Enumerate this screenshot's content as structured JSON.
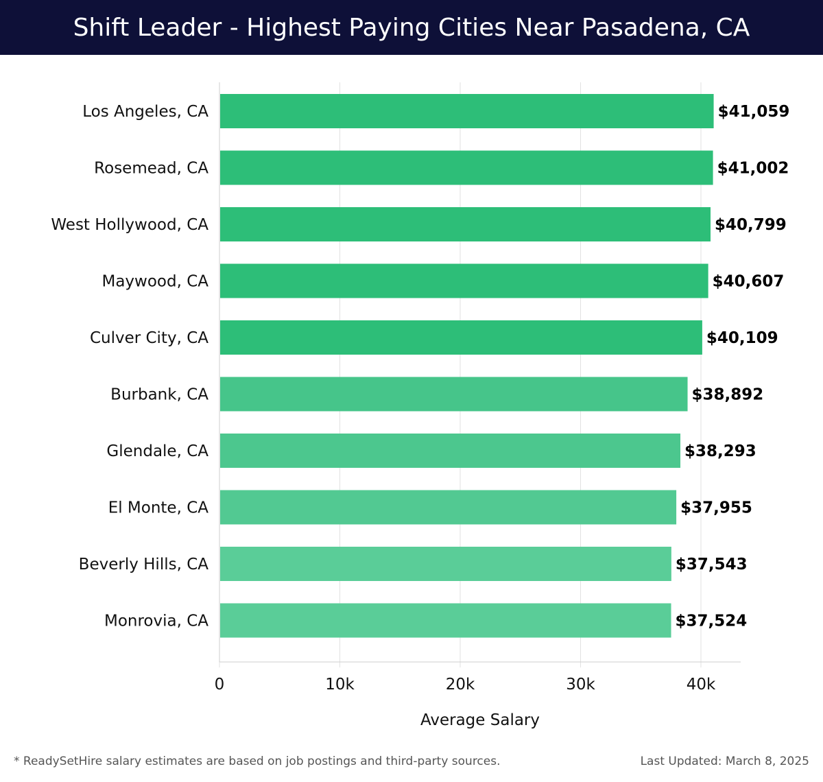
{
  "header": {
    "title": "Shift Leader - Highest Paying Cities Near Pasadena, CA"
  },
  "chart_data": {
    "type": "bar",
    "orientation": "horizontal",
    "title": "Shift Leader - Highest Paying Cities Near Pasadena, CA",
    "xlabel": "Average Salary",
    "ylabel": "",
    "xlim": [
      0,
      43000
    ],
    "grid": true,
    "categories": [
      "Los Angeles, CA",
      "Rosemead, CA",
      "West Hollywood, CA",
      "Maywood, CA",
      "Culver City, CA",
      "Burbank, CA",
      "Glendale, CA",
      "El Monte, CA",
      "Beverly Hills, CA",
      "Monrovia, CA"
    ],
    "values": [
      41059,
      41002,
      40799,
      40607,
      40109,
      38892,
      38293,
      37955,
      37543,
      37524
    ],
    "value_labels": [
      "$41,059",
      "$41,002",
      "$40,799",
      "$40,607",
      "$40,109",
      "$38,892",
      "$38,293",
      "$37,955",
      "$37,543",
      "$37,524"
    ],
    "x_ticks": [
      0,
      10000,
      20000,
      30000,
      40000
    ],
    "x_tick_labels": [
      "0",
      "10k",
      "20k",
      "30k",
      "40k"
    ],
    "colors": {
      "bar_top": "#2dbe78",
      "bar_light": "#5acd98",
      "grid": "#e2e2e2",
      "axis": "#cccccc"
    }
  },
  "footer": {
    "note": "* ReadySetHire salary estimates are based on job postings and third-party sources.",
    "updated": "Last Updated: March 8, 2025"
  }
}
